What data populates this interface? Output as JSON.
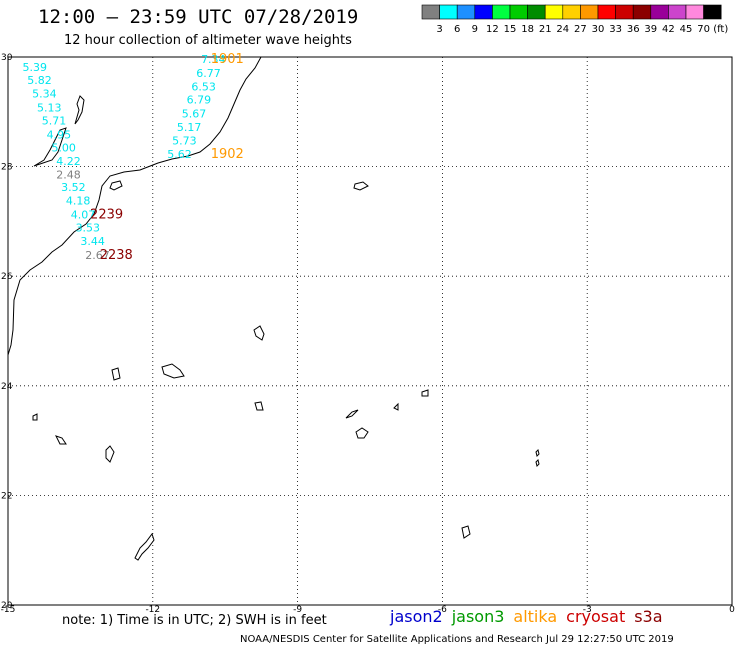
{
  "header": {
    "title": "12:00 – 23:59 UTC 07/28/2019",
    "subtitle": "12 hour collection of altimeter wave heights"
  },
  "colorbar": {
    "unit": "(ft)",
    "bins": [
      {
        "label": "3",
        "color": "#808080"
      },
      {
        "label": "6",
        "color": "#00ffff"
      },
      {
        "label": "9",
        "color": "#1e90ff"
      },
      {
        "label": "12",
        "color": "#0000ff"
      },
      {
        "label": "15",
        "color": "#00ff40"
      },
      {
        "label": "18",
        "color": "#00cc00"
      },
      {
        "label": "21",
        "color": "#008c00"
      },
      {
        "label": "24",
        "color": "#ffff00"
      },
      {
        "label": "27",
        "color": "#ffd000"
      },
      {
        "label": "30",
        "color": "#ff9900"
      },
      {
        "label": "33",
        "color": "#ff0000"
      },
      {
        "label": "36",
        "color": "#cc0000"
      },
      {
        "label": "39",
        "color": "#8b0000"
      },
      {
        "label": "42",
        "color": "#990099"
      },
      {
        "label": "45",
        "color": "#cc44cc"
      },
      {
        "label": "70",
        "color": "#ff88dd"
      },
      {
        "label": "",
        "color": "#000000"
      }
    ]
  },
  "axes": {
    "lon_labels": [
      "-15",
      "-12",
      "-9",
      "-6",
      "-3",
      "0"
    ],
    "lat_labels": [
      "30",
      "28",
      "26",
      "24",
      "22",
      "20"
    ],
    "lon_range": [
      -15,
      0
    ],
    "lat_range": [
      20,
      30
    ]
  },
  "tracks": {
    "jason3_a": {
      "color": "#00e5ee",
      "labels": [
        {
          "text": "5.39",
          "lon": -14.7,
          "lat": 29.82
        },
        {
          "text": "5.82",
          "lon": -14.6,
          "lat": 29.58
        },
        {
          "text": "5.34",
          "lon": -14.5,
          "lat": 29.33
        },
        {
          "text": "5.13",
          "lon": -14.4,
          "lat": 29.08
        },
        {
          "text": "5.71",
          "lon": -14.3,
          "lat": 28.84
        },
        {
          "text": "4.95",
          "lon": -14.2,
          "lat": 28.59
        },
        {
          "text": "5.00",
          "lon": -14.1,
          "lat": 28.35
        },
        {
          "text": "4.22",
          "lon": -14.0,
          "lat": 28.1
        },
        {
          "text": "3.52",
          "lon": -13.9,
          "lat": 27.63
        },
        {
          "text": "4.18",
          "lon": -13.8,
          "lat": 27.38
        },
        {
          "text": "4.07",
          "lon": -13.7,
          "lat": 27.13
        },
        {
          "text": "3.53",
          "lon": -13.6,
          "lat": 26.89
        },
        {
          "text": "3.44",
          "lon": -13.5,
          "lat": 26.64
        }
      ],
      "grey_labels": [
        {
          "text": "2.48",
          "lon": -14.0,
          "lat": 27.86
        },
        {
          "text": "2.67",
          "lon": -13.4,
          "lat": 26.39
        }
      ]
    },
    "jason3_b": {
      "color": "#00e5ee",
      "labels": [
        {
          "text": "7.34",
          "lon": -11.0,
          "lat": 29.96
        },
        {
          "text": "6.77",
          "lon": -11.1,
          "lat": 29.71
        },
        {
          "text": "6.53",
          "lon": -11.2,
          "lat": 29.46
        },
        {
          "text": "6.79",
          "lon": -11.3,
          "lat": 29.22
        },
        {
          "text": "5.67",
          "lon": -11.4,
          "lat": 28.97
        },
        {
          "text": "5.17",
          "lon": -11.5,
          "lat": 28.72
        },
        {
          "text": "5.73",
          "lon": -11.6,
          "lat": 28.48
        },
        {
          "text": "5.62",
          "lon": -11.7,
          "lat": 28.23
        }
      ]
    },
    "time_labels": [
      {
        "text": "1901",
        "color": "#ff9900",
        "lon": -10.8,
        "lat": 29.96
      },
      {
        "text": "1902",
        "color": "#ff9900",
        "lon": -10.8,
        "lat": 28.23
      },
      {
        "text": "2239",
        "color": "#8b0000",
        "lon": -13.3,
        "lat": 27.13
      },
      {
        "text": "2238",
        "color": "#8b0000",
        "lon": -13.1,
        "lat": 26.39
      }
    ]
  },
  "footer": {
    "note": "note:  1) Time is in UTC;  2) SWH is in feet",
    "legend": [
      {
        "label": "jason2",
        "color": "#0000cc"
      },
      {
        "label": "jason3",
        "color": "#009900"
      },
      {
        "label": "altika",
        "color": "#ff9900"
      },
      {
        "label": "cryosat",
        "color": "#cc0000"
      },
      {
        "label": "s3a",
        "color": "#8b0000"
      }
    ],
    "credit": "NOAA/NESDIS Center for Satellite Applications and Research    Jul 29 12:27:50 UTC 2019"
  }
}
